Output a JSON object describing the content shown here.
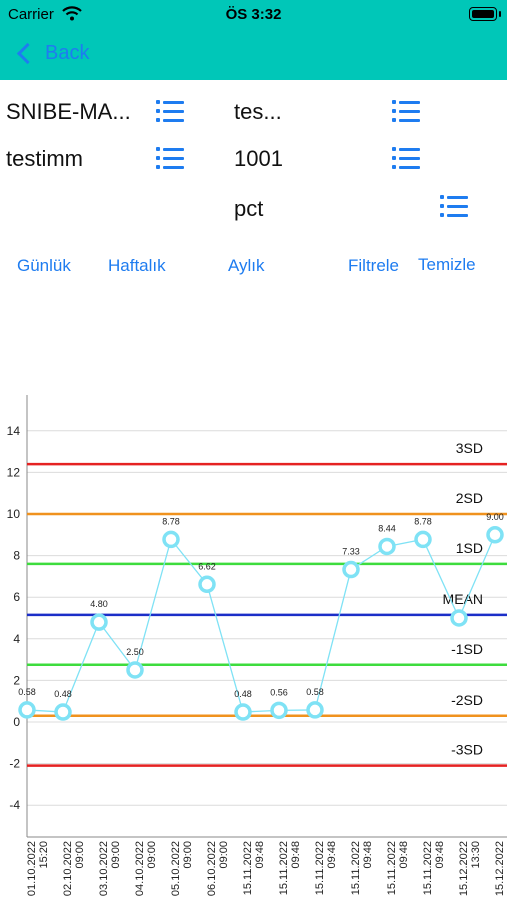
{
  "status_bar": {
    "carrier": "Carrier",
    "time": "ÖS 3:32"
  },
  "nav": {
    "back_label": "Back"
  },
  "selectors": {
    "left_row1": "SNIBE-MA...",
    "right_row1": "tes...",
    "left_row2": "testimm",
    "right_row2": "1001",
    "right_row3": "pct"
  },
  "buttons": {
    "daily": "Günlük",
    "weekly": "Haftalık",
    "monthly": "Aylık",
    "filter": "Filtrele",
    "clear": "Temizle"
  },
  "colors": {
    "accent": "#1e7cf0",
    "header": "#00c7b8",
    "series": "#7fe2f5"
  },
  "chart_data": {
    "type": "line",
    "title": "",
    "xlabel": "",
    "ylabel": "",
    "ylim": [
      -5,
      16
    ],
    "yticks": [
      -4,
      -2,
      0,
      2,
      4,
      6,
      8,
      10,
      12,
      14
    ],
    "grid": true,
    "x": [
      "01.10.2022 15:20",
      "02.10.2022 09:00",
      "03.10.2022 09:00",
      "04.10.2022 09:00",
      "05.10.2022 09:00",
      "06.10.2022 09:00",
      "15.11.2022 09:48",
      "15.11.2022 09:48",
      "15.11.2022 09:48",
      "15.11.2022 09:48",
      "15.11.2022 09:48",
      "15.11.2022 09:48",
      "15.12.2022 13:30",
      "15.12.2022 13:30"
    ],
    "series": [
      {
        "values": [
          0.58,
          0.48,
          4.8,
          2.5,
          8.78,
          6.62,
          0.48,
          0.56,
          0.58,
          7.33,
          8.44,
          8.78,
          5.0,
          9.0
        ],
        "labels": [
          "0.58",
          "0.48",
          "4.80",
          "2.50",
          "8.78",
          "6.62",
          "0.48",
          "0.56",
          "0.58",
          "7.33",
          "8.44",
          "8.78",
          "",
          "9.00"
        ]
      }
    ],
    "control_lines": [
      {
        "label": "3SD",
        "value": 12.4,
        "color": "#e52222"
      },
      {
        "label": "2SD",
        "value": 10.0,
        "color": "#f0921e"
      },
      {
        "label": "1SD",
        "value": 7.6,
        "color": "#3ddc3d"
      },
      {
        "label": "MEAN",
        "value": 5.15,
        "color": "#1b2ec8"
      },
      {
        "label": "-1SD",
        "value": 2.75,
        "color": "#3ddc3d"
      },
      {
        "label": "-2SD",
        "value": 0.3,
        "color": "#f0921e"
      },
      {
        "label": "-3SD",
        "value": -2.1,
        "color": "#e52222"
      }
    ]
  }
}
